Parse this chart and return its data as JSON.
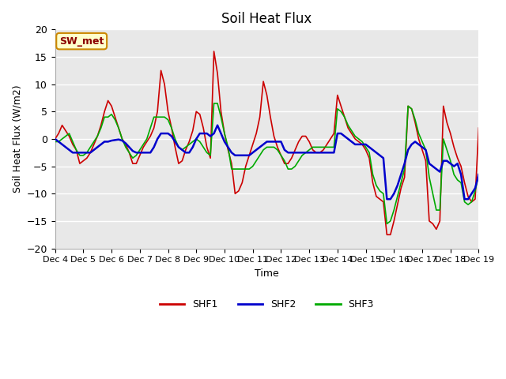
{
  "title": "Soil Heat Flux",
  "xlabel": "Time",
  "ylabel": "Soil Heat Flux (W/m2)",
  "ylim": [
    -20,
    20
  ],
  "yticks": [
    -20,
    -15,
    -10,
    -5,
    0,
    5,
    10,
    15,
    20
  ],
  "fig_bg_color": "#ffffff",
  "plot_bg_color": "#e8e8e8",
  "grid_color": "#ffffff",
  "annotation_text": "SW_met",
  "annotation_bg": "#ffffcc",
  "annotation_border": "#cc8800",
  "annotation_text_color": "#8b0000",
  "x_labels": [
    "Dec 4",
    "Dec 5",
    "Dec 6",
    "Dec 7",
    "Dec 8",
    "Dec 9",
    "Dec 10",
    "Dec 11",
    "Dec 12",
    "Dec 13",
    "Dec 14",
    "Dec 15",
    "Dec 16",
    "Dec 17",
    "Dec 18",
    "Dec 19"
  ],
  "shf1_color": "#cc0000",
  "shf2_color": "#0000cc",
  "shf3_color": "#00aa00",
  "shf1_lw": 1.2,
  "shf2_lw": 1.8,
  "shf3_lw": 1.2,
  "n_points": 121,
  "SHF1": [
    0.0,
    1.0,
    2.5,
    1.5,
    0.5,
    -1.0,
    -2.0,
    -4.5,
    -4.0,
    -3.5,
    -2.5,
    -1.0,
    0.5,
    2.5,
    5.0,
    7.0,
    6.0,
    4.0,
    2.0,
    0.0,
    -1.0,
    -2.5,
    -4.5,
    -4.5,
    -3.0,
    -1.5,
    -0.5,
    0.5,
    2.0,
    5.0,
    12.5,
    10.0,
    5.0,
    2.0,
    -1.5,
    -4.5,
    -4.0,
    -2.0,
    -0.5,
    1.5,
    5.0,
    4.5,
    2.0,
    -1.5,
    -3.5,
    16.0,
    12.0,
    5.0,
    1.0,
    -2.0,
    -4.5,
    -10.0,
    -9.5,
    -8.0,
    -5.0,
    -3.0,
    -1.0,
    1.0,
    4.0,
    10.5,
    8.0,
    4.0,
    0.5,
    -1.5,
    -3.0,
    -4.5,
    -4.5,
    -3.5,
    -2.0,
    -0.5,
    0.5,
    0.5,
    -0.5,
    -2.0,
    -2.5,
    -2.5,
    -2.0,
    -1.0,
    0.0,
    1.0,
    8.0,
    6.0,
    4.0,
    2.0,
    1.0,
    0.0,
    -0.5,
    -1.0,
    -2.0,
    -3.5,
    -8.0,
    -10.5,
    -11.0,
    -11.5,
    -17.5,
    -17.5,
    -15.0,
    -12.0,
    -9.0,
    -7.0,
    6.0,
    5.5,
    3.0,
    0.0,
    -2.0,
    -4.0,
    -15.0,
    -15.5,
    -16.5,
    -15.0,
    6.0,
    3.0,
    1.0,
    -1.5,
    -3.5,
    -5.0,
    -8.0,
    -10.5,
    -11.5,
    -11.0,
    2.0
  ],
  "SHF2": [
    0.0,
    -0.5,
    -1.0,
    -1.5,
    -2.0,
    -2.5,
    -2.5,
    -2.5,
    -2.5,
    -2.5,
    -2.5,
    -2.0,
    -1.5,
    -1.0,
    -0.5,
    -0.5,
    -0.3,
    -0.2,
    -0.1,
    -0.3,
    -0.8,
    -1.5,
    -2.2,
    -2.5,
    -2.5,
    -2.5,
    -2.5,
    -2.5,
    -1.5,
    0.0,
    1.0,
    1.0,
    1.0,
    0.5,
    -0.5,
    -1.5,
    -2.0,
    -2.5,
    -2.5,
    -1.5,
    0.0,
    1.0,
    1.0,
    1.0,
    0.5,
    1.0,
    2.5,
    1.0,
    -0.5,
    -1.5,
    -2.5,
    -3.0,
    -3.0,
    -3.0,
    -3.0,
    -3.0,
    -2.5,
    -2.0,
    -1.5,
    -1.0,
    -0.5,
    -0.5,
    -0.5,
    -0.5,
    -0.5,
    -2.0,
    -2.5,
    -2.5,
    -2.5,
    -2.5,
    -2.5,
    -2.5,
    -2.5,
    -2.5,
    -2.5,
    -2.5,
    -2.5,
    -2.5,
    -2.5,
    -2.5,
    1.0,
    1.0,
    0.5,
    0.0,
    -0.5,
    -1.0,
    -1.0,
    -1.0,
    -1.0,
    -1.5,
    -2.0,
    -2.5,
    -3.0,
    -3.5,
    -11.0,
    -11.0,
    -10.0,
    -8.5,
    -6.5,
    -4.5,
    -2.0,
    -1.0,
    -0.5,
    -1.0,
    -1.5,
    -2.0,
    -4.5,
    -5.0,
    -5.5,
    -6.0,
    -4.0,
    -4.0,
    -4.5,
    -5.0,
    -4.5,
    -6.5,
    -11.0,
    -11.0,
    -10.0,
    -9.0,
    -6.5
  ],
  "SHF3": [
    -0.5,
    -0.5,
    0.0,
    0.5,
    1.0,
    -0.5,
    -2.0,
    -3.0,
    -3.0,
    -2.5,
    -1.5,
    -0.5,
    0.5,
    2.0,
    4.0,
    4.0,
    4.5,
    3.5,
    2.0,
    0.0,
    -1.5,
    -2.5,
    -3.5,
    -3.0,
    -2.0,
    -1.0,
    0.0,
    2.0,
    4.0,
    4.0,
    4.0,
    4.0,
    3.5,
    2.0,
    0.0,
    -1.5,
    -2.0,
    -1.5,
    -1.0,
    -0.5,
    0.0,
    -0.5,
    -1.5,
    -2.5,
    -3.0,
    6.5,
    6.5,
    4.0,
    1.0,
    -1.5,
    -5.5,
    -5.5,
    -5.5,
    -5.5,
    -5.5,
    -5.5,
    -5.0,
    -4.0,
    -3.0,
    -2.0,
    -1.5,
    -1.5,
    -1.5,
    -2.0,
    -3.0,
    -4.0,
    -5.5,
    -5.5,
    -5.0,
    -4.0,
    -3.0,
    -2.5,
    -2.0,
    -1.5,
    -1.5,
    -1.5,
    -1.5,
    -1.5,
    -1.5,
    -1.5,
    5.5,
    5.0,
    4.0,
    2.5,
    1.5,
    0.5,
    0.0,
    -0.5,
    -1.5,
    -2.5,
    -6.5,
    -8.5,
    -9.5,
    -10.0,
    -15.5,
    -15.0,
    -13.0,
    -10.5,
    -8.0,
    -5.5,
    6.0,
    5.5,
    3.5,
    1.0,
    -0.5,
    -2.0,
    -7.0,
    -10.0,
    -13.0,
    -13.0,
    0.0,
    -2.0,
    -4.0,
    -6.5,
    -7.5,
    -8.0,
    -11.5,
    -12.0,
    -11.5,
    -9.5,
    -6.5
  ]
}
